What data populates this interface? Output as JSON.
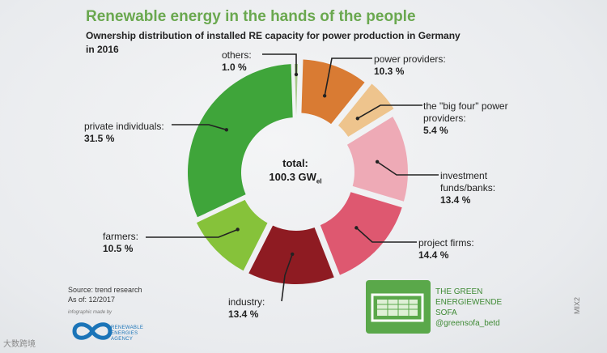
{
  "title": "Renewable energy in the hands of the people",
  "subtitle": "Ownership distribution of installed RE capacity for power production in Germany in 2016",
  "chart_data": {
    "type": "pie",
    "donut": true,
    "center_label": "total:",
    "center_value": "100.3 GW",
    "center_unit_sub": "el",
    "slices": [
      {
        "label": "others:",
        "value": 1.0,
        "value_text": "1.0 %",
        "color": "#a8c98b"
      },
      {
        "label": "power providers:",
        "value": 10.3,
        "value_text": "10.3 %",
        "color": "#d97b33"
      },
      {
        "label": "the \"big four\" power providers:",
        "value": 5.4,
        "value_text": "5.4 %",
        "color": "#eec48d"
      },
      {
        "label": "investment funds/banks:",
        "value": 13.4,
        "value_text": "13.4 %",
        "color": "#eeaab6"
      },
      {
        "label": "project firms:",
        "value": 14.4,
        "value_text": "14.4 %",
        "color": "#de5870"
      },
      {
        "label": "industry:",
        "value": 13.4,
        "value_text": "13.4 %",
        "color": "#8e1b22"
      },
      {
        "label": "farmers:",
        "value": 10.5,
        "value_text": "10.5 %",
        "color": "#86c23a"
      },
      {
        "label": "private individuals:",
        "value": 31.5,
        "value_text": "31.5 %",
        "color": "#3fa53a"
      }
    ]
  },
  "footer": {
    "source": "Source: trend research",
    "asof": "As of: 12/2017",
    "made_by": "infographic made by",
    "rea_lines": [
      "RENEWABLE",
      "ENERGIES",
      "AGENCY"
    ],
    "sofa_lines": [
      "THE GREEN",
      "ENERGIEWENDE",
      "SOFA",
      "@greensofa_betd"
    ]
  },
  "watermark": "大数跨境",
  "side_mark": "MIX2",
  "colors": {
    "title": "#6aa84f",
    "rea": "#1b74b8",
    "sofa": "#5aa84a"
  }
}
